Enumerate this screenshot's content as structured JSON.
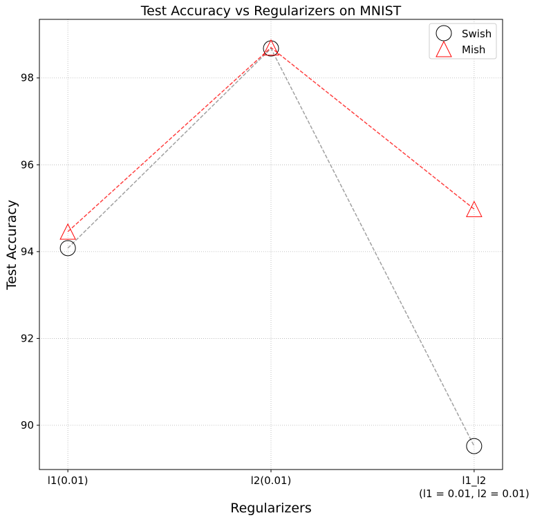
{
  "chart_data": {
    "type": "line",
    "title": "Test Accuracy vs Regularizers on MNIST",
    "xlabel": "Regularizers",
    "ylabel": "Test Accuracy",
    "categories": [
      "l1(0.01)",
      "l2(0.01)",
      "l1_l2\n(l1 = 0.01, l2 = 0.01)"
    ],
    "ylim": [
      88.98,
      99.35
    ],
    "xlim": [
      -0.14,
      2.14
    ],
    "yticks": [
      90,
      92,
      94,
      96,
      98
    ],
    "grid": true,
    "legend_position": "top-right",
    "series": [
      {
        "name": "Swish",
        "values": [
          94.08,
          98.68,
          89.52
        ],
        "marker": "circle",
        "marker_color": "#000000",
        "line_color": "#808080",
        "line_style": "dashed"
      },
      {
        "name": "Mish",
        "values": [
          94.46,
          98.7,
          94.98
        ],
        "marker": "triangle",
        "marker_color": "#ff0000",
        "line_color": "#ff0000",
        "line_style": "dashed"
      }
    ]
  }
}
